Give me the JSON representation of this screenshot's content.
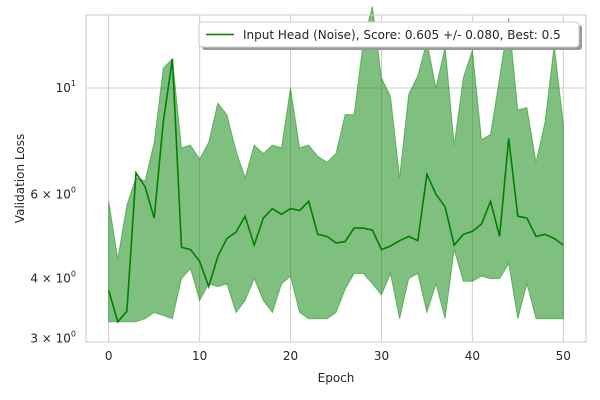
{
  "chart_data": {
    "type": "line",
    "xlabel": "Epoch",
    "ylabel": "Validation Loss",
    "yscale": "log",
    "xlim": [
      -2.5,
      52.5
    ],
    "ylim": [
      2.95,
      14.2
    ],
    "grid": true,
    "legend_placement": "top-right",
    "x_ticks": [
      0,
      10,
      20,
      30,
      40,
      50
    ],
    "x_tick_labels": [
      "0",
      "10",
      "20",
      "30",
      "40",
      "50"
    ],
    "y_major_ticks": [
      10
    ],
    "y_major_tick_labels": [
      "10"
    ],
    "y_major_tick_exps": [
      "1"
    ],
    "y_minor_ticks": [
      3,
      4,
      6
    ],
    "y_minor_tick_labels": [
      "3 × 10",
      "4 × 10",
      "6 × 10"
    ],
    "y_minor_tick_exps": [
      "0",
      "0",
      "0"
    ],
    "colors": {
      "line": "#008000",
      "band": "#008000",
      "grid": "#cccccc",
      "axes_edge": "#cccccc"
    },
    "series": [
      {
        "name": "Input Head (Noise), Score: 0.605 +/- 0.080,  Best: 0.5",
        "x": [
          0,
          1,
          2,
          3,
          4,
          5,
          6,
          7,
          8,
          9,
          10,
          11,
          12,
          13,
          14,
          15,
          16,
          17,
          18,
          19,
          20,
          21,
          22,
          23,
          24,
          25,
          26,
          27,
          28,
          29,
          30,
          31,
          32,
          33,
          34,
          35,
          36,
          37,
          38,
          39,
          40,
          41,
          42,
          43,
          44,
          45,
          46,
          47,
          48,
          49,
          50
        ],
        "mean": [
          3.78,
          3.25,
          3.42,
          6.65,
          6.22,
          5.35,
          8.5,
          11.5,
          4.65,
          4.6,
          4.35,
          3.85,
          4.45,
          4.85,
          5.0,
          5.4,
          4.7,
          5.35,
          5.6,
          5.45,
          5.6,
          5.55,
          5.8,
          4.95,
          4.9,
          4.75,
          4.78,
          5.1,
          5.1,
          5.05,
          4.6,
          4.68,
          4.8,
          4.9,
          4.8,
          6.6,
          6.0,
          5.65,
          4.7,
          4.95,
          5.02,
          5.2,
          5.8,
          4.9,
          7.85,
          5.4,
          5.35,
          4.9,
          4.95,
          4.85,
          4.7
        ],
        "upper": [
          5.8,
          4.4,
          5.7,
          6.5,
          6.4,
          7.7,
          11.0,
          11.5,
          7.5,
          7.6,
          7.1,
          7.7,
          9.3,
          8.8,
          7.4,
          6.5,
          7.6,
          7.3,
          7.6,
          7.5,
          10.0,
          7.5,
          7.6,
          7.2,
          7.0,
          7.3,
          8.8,
          8.8,
          12.5,
          14.8,
          10.5,
          9.6,
          6.5,
          9.7,
          10.6,
          12.5,
          10.0,
          12.2,
          7.6,
          10.5,
          12.0,
          7.8,
          8.0,
          10.5,
          14.0,
          9.0,
          9.1,
          7.0,
          8.5,
          12.3,
          8.4
        ],
        "lower": [
          3.25,
          3.25,
          3.25,
          3.25,
          3.3,
          3.4,
          3.35,
          3.3,
          4.0,
          4.2,
          3.6,
          3.9,
          3.85,
          3.9,
          3.4,
          3.6,
          4.0,
          3.6,
          3.4,
          3.9,
          4.05,
          3.4,
          3.3,
          3.3,
          3.3,
          3.4,
          3.8,
          4.1,
          4.1,
          3.9,
          3.7,
          4.1,
          3.3,
          4.0,
          4.1,
          3.4,
          3.9,
          3.3,
          4.6,
          3.95,
          3.95,
          4.05,
          4.0,
          4.0,
          4.3,
          3.3,
          3.9,
          3.3,
          3.3,
          3.3,
          3.3
        ]
      }
    ]
  }
}
